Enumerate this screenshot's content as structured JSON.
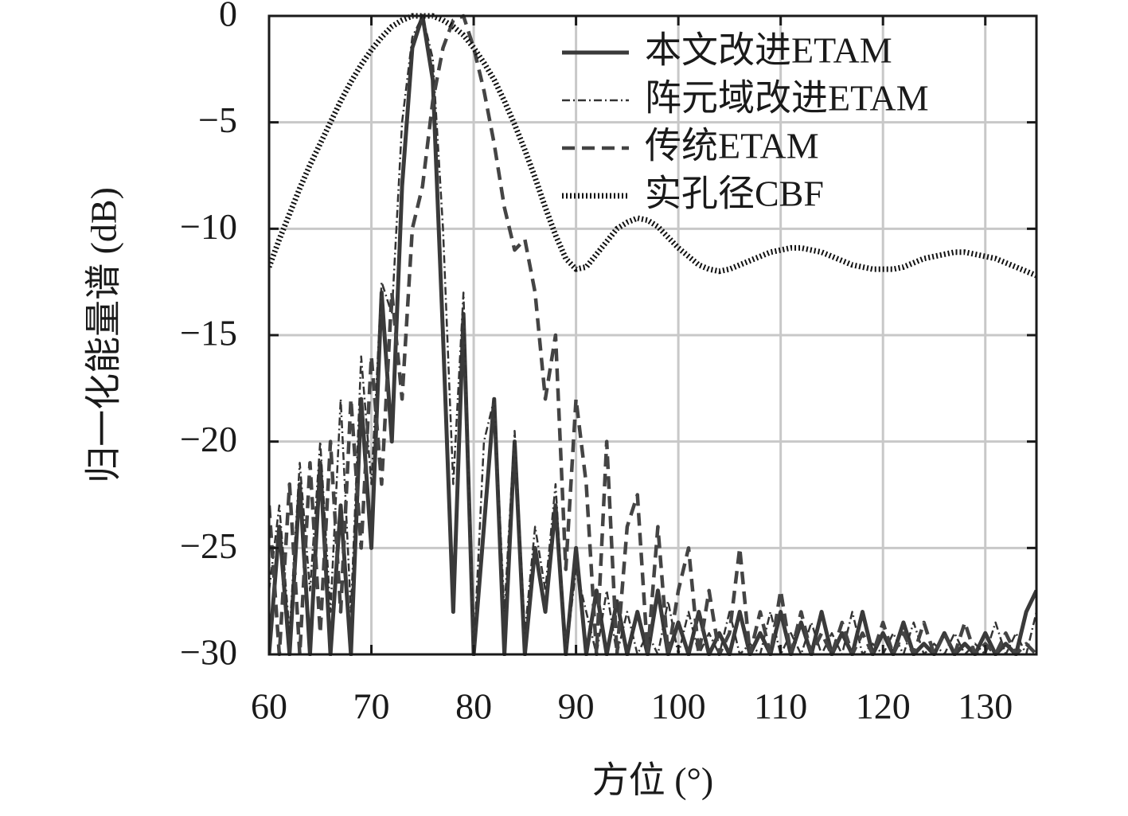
{
  "chart_data": {
    "type": "line",
    "xlabel": "方位 (°)",
    "ylabel": "归一化能量谱 (dB)",
    "x": [
      60,
      61,
      62,
      63,
      64,
      65,
      66,
      67,
      68,
      69,
      70,
      71,
      72,
      73,
      74,
      75,
      76,
      77,
      78,
      79,
      80,
      81,
      82,
      83,
      84,
      85,
      86,
      87,
      88,
      89,
      90,
      91,
      92,
      93,
      94,
      95,
      96,
      97,
      98,
      99,
      100,
      101,
      102,
      103,
      104,
      105,
      106,
      107,
      108,
      109,
      110,
      111,
      112,
      113,
      114,
      115,
      116,
      117,
      118,
      119,
      120,
      121,
      122,
      123,
      124,
      125,
      126,
      127,
      128,
      129,
      130,
      131,
      132,
      133,
      134,
      135
    ],
    "xlim": [
      60,
      135
    ],
    "xticks": [
      60,
      70,
      80,
      90,
      100,
      110,
      120,
      130
    ],
    "ylim": [
      -30,
      0
    ],
    "yticks": [
      {
        "value": -30,
        "label": "−30"
      },
      {
        "value": -25,
        "label": "−25"
      },
      {
        "value": -20,
        "label": "−20"
      },
      {
        "value": -15,
        "label": "−15"
      },
      {
        "value": -10,
        "label": "−10"
      },
      {
        "value": -5,
        "label": "−5"
      },
      0
    ],
    "grid": true,
    "legend": "upper right",
    "series": [
      {
        "name": "本文改进ETAM",
        "color": "#3a3a3a",
        "style": "solid",
        "values": [
          -30,
          -24,
          -30,
          -22,
          -30,
          -21,
          -30,
          -23,
          -30,
          -18,
          -25,
          -13,
          -20,
          -8,
          -1.5,
          0,
          -3,
          -15,
          -28,
          -14,
          -30,
          -24,
          -18,
          -30,
          -20,
          -30,
          -25,
          -28,
          -23,
          -30,
          -25,
          -30,
          -27,
          -30,
          -27.5,
          -30,
          -28,
          -30,
          -27,
          -30,
          -28.5,
          -30,
          -28,
          -30,
          -29,
          -30,
          -28,
          -30,
          -29,
          -30,
          -28,
          -30,
          -28.5,
          -30,
          -28,
          -30,
          -29,
          -30,
          -28,
          -30,
          -29,
          -30,
          -28.5,
          -30,
          -29.5,
          -30,
          -29,
          -30,
          -29.5,
          -30,
          -29,
          -30,
          -29.5,
          -30,
          -28,
          -27
        ]
      },
      {
        "name": "阵元域改进ETAM",
        "color": "#333333",
        "style": "dashdot",
        "values": [
          -27,
          -23,
          -29,
          -21,
          -27,
          -20,
          -28,
          -18,
          -28,
          -16,
          -22,
          -12.5,
          -14,
          -5,
          -1,
          0,
          -2,
          -10,
          -22,
          -13,
          -30,
          -20,
          -18,
          -28,
          -19.5,
          -29,
          -24,
          -27,
          -22,
          -30,
          -26,
          -28,
          -30,
          -27,
          -30,
          -28,
          -30,
          -29,
          -30,
          -27.5,
          -30,
          -28,
          -30,
          -29,
          -30,
          -28,
          -30,
          -29.5,
          -30,
          -28,
          -30,
          -29,
          -30,
          -28.5,
          -30,
          -29,
          -30,
          -28,
          -30,
          -29.5,
          -30,
          -29,
          -30,
          -28.5,
          -30,
          -29.5,
          -30,
          -29,
          -30,
          -29.5,
          -30,
          -28.5,
          -30,
          -29,
          -30,
          -28
        ]
      },
      {
        "name": "传统ETAM",
        "color": "#444444",
        "style": "dashed",
        "values": [
          -23,
          -30,
          -22,
          -30,
          -21,
          -29,
          -20,
          -28,
          -18,
          -25,
          -16,
          -22,
          -13,
          -18,
          -10,
          -8,
          -4,
          -1.5,
          -0.2,
          0,
          -1.5,
          -3.5,
          -6,
          -9,
          -11,
          -10.5,
          -13,
          -18,
          -15,
          -26,
          -18,
          -22,
          -30,
          -20,
          -30,
          -24,
          -22.5,
          -30,
          -24,
          -30,
          -27,
          -25,
          -30,
          -27,
          -30,
          -29,
          -25,
          -30,
          -28,
          -30,
          -27,
          -30,
          -28,
          -30,
          -29,
          -30,
          -28.5,
          -30,
          -29,
          -30,
          -28.5,
          -30,
          -29,
          -30,
          -28.5,
          -30,
          -29,
          -30,
          -28.5,
          -30,
          -29.5,
          -30,
          -29,
          -30,
          -29.5,
          -30
        ]
      },
      {
        "name": "实孔径CBF",
        "color": "#111111",
        "style": "dotted",
        "values": [
          -11.8,
          -10.5,
          -9.3,
          -8.1,
          -7,
          -6,
          -5,
          -4,
          -3.1,
          -2.3,
          -1.6,
          -1,
          -0.5,
          -0.2,
          0,
          0,
          0,
          -0.2,
          -0.5,
          -0.9,
          -1.5,
          -2.2,
          -3,
          -4,
          -5.1,
          -6.3,
          -7.6,
          -9,
          -10.3,
          -11.4,
          -11.9,
          -11.8,
          -11.2,
          -10.6,
          -10,
          -9.7,
          -9.5,
          -9.6,
          -9.9,
          -10.4,
          -10.9,
          -11.3,
          -11.7,
          -11.9,
          -12,
          -11.9,
          -11.7,
          -11.5,
          -11.3,
          -11.1,
          -11,
          -10.9,
          -10.9,
          -11,
          -11.1,
          -11.3,
          -11.5,
          -11.7,
          -11.8,
          -11.9,
          -11.9,
          -11.9,
          -11.8,
          -11.6,
          -11.4,
          -11.3,
          -11.2,
          -11.1,
          -11.1,
          -11.2,
          -11.3,
          -11.4,
          -11.6,
          -11.8,
          -12,
          -12.2
        ]
      }
    ]
  }
}
